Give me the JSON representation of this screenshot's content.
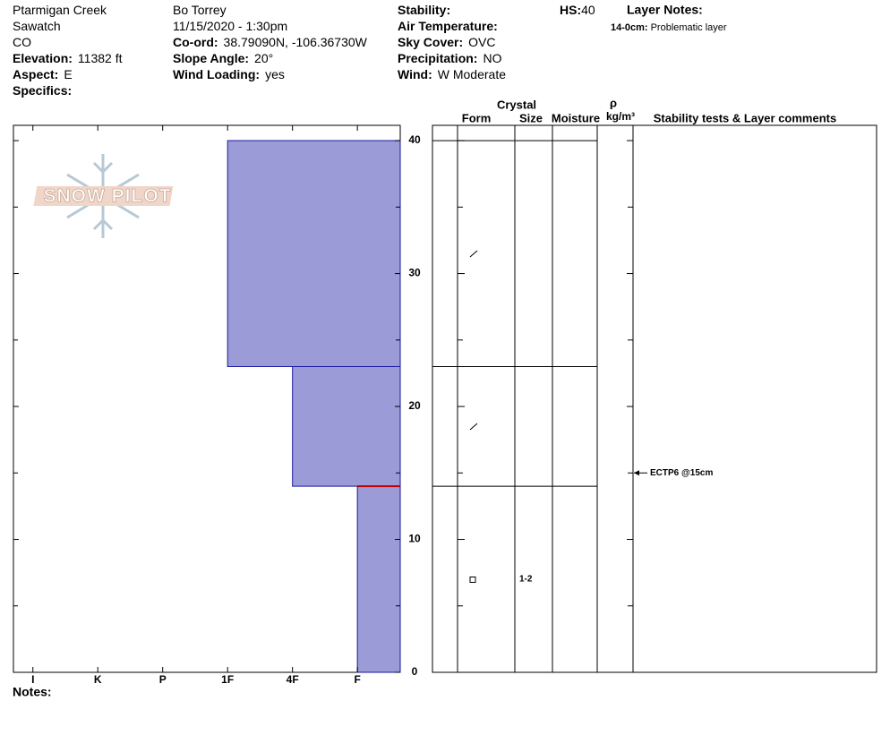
{
  "header": {
    "columns": [
      [
        {
          "value": "Ptarmigan Creek"
        },
        {
          "value": "Sawatch"
        },
        {
          "value": "CO"
        },
        {
          "label": "Elevation:",
          "value": "11382 ft"
        },
        {
          "label": "Aspect:",
          "value": "E"
        },
        {
          "label": "Specifics:"
        }
      ],
      [
        {
          "value": "Bo Torrey"
        },
        {
          "value": "11/15/2020 - 1:30pm"
        },
        {
          "label": "Co-ord:",
          "value": "38.79090N, -106.36730W"
        },
        {
          "label": "Slope Angle:",
          "value": "20°"
        },
        {
          "label": "Wind Loading:",
          "value": "yes"
        }
      ],
      [
        {
          "label": "Stability:"
        },
        {
          "label": "Air Temperature:"
        },
        {
          "label": "Sky Cover:",
          "value": "OVC"
        },
        {
          "label": "Precipitation:",
          "value": "NO"
        },
        {
          "label": "Wind:",
          "value": "W Moderate"
        }
      ],
      [
        {
          "label": "HS:",
          "value": "40"
        }
      ]
    ],
    "layer_notes_title": "Layer Notes:",
    "layer_notes": [
      {
        "label": "14-0cm:",
        "text": "Problematic layer"
      }
    ]
  },
  "logo": "SNOW PILOT",
  "notes_label": "Notes:",
  "table_headers": {
    "crystal": "Crystal",
    "form": "Form",
    "size": "Size",
    "moisture": "Moisture",
    "rho": "ρ",
    "density": "kg/m³",
    "comments": "Stability tests & Layer comments"
  },
  "chart_data": {
    "type": "snow-profile",
    "ylim": [
      0,
      41.15
    ],
    "yticks": [
      0,
      10,
      20,
      30,
      40
    ],
    "y_minor_ticks": [
      5,
      15,
      25,
      35
    ],
    "xlim": [
      6.3,
      0.34
    ],
    "xticks": [
      {
        "value": 6,
        "label": "I"
      },
      {
        "value": 5,
        "label": "K"
      },
      {
        "value": 4,
        "label": "P"
      },
      {
        "value": 3,
        "label": "1F"
      },
      {
        "value": 2,
        "label": "4F"
      },
      {
        "value": 1,
        "label": "F"
      }
    ],
    "color": "#9b9bd7",
    "layers": [
      {
        "top": 40,
        "bottom": 23,
        "hardness": 3
      },
      {
        "top": 23,
        "bottom": 14,
        "hardness": 2
      },
      {
        "top": 14,
        "bottom": 0,
        "hardness": 1,
        "size": "1-2"
      }
    ],
    "problem_depth": 14,
    "stability_tests": [
      {
        "depth": 15,
        "label": "ECTP6 @15cm"
      }
    ]
  }
}
